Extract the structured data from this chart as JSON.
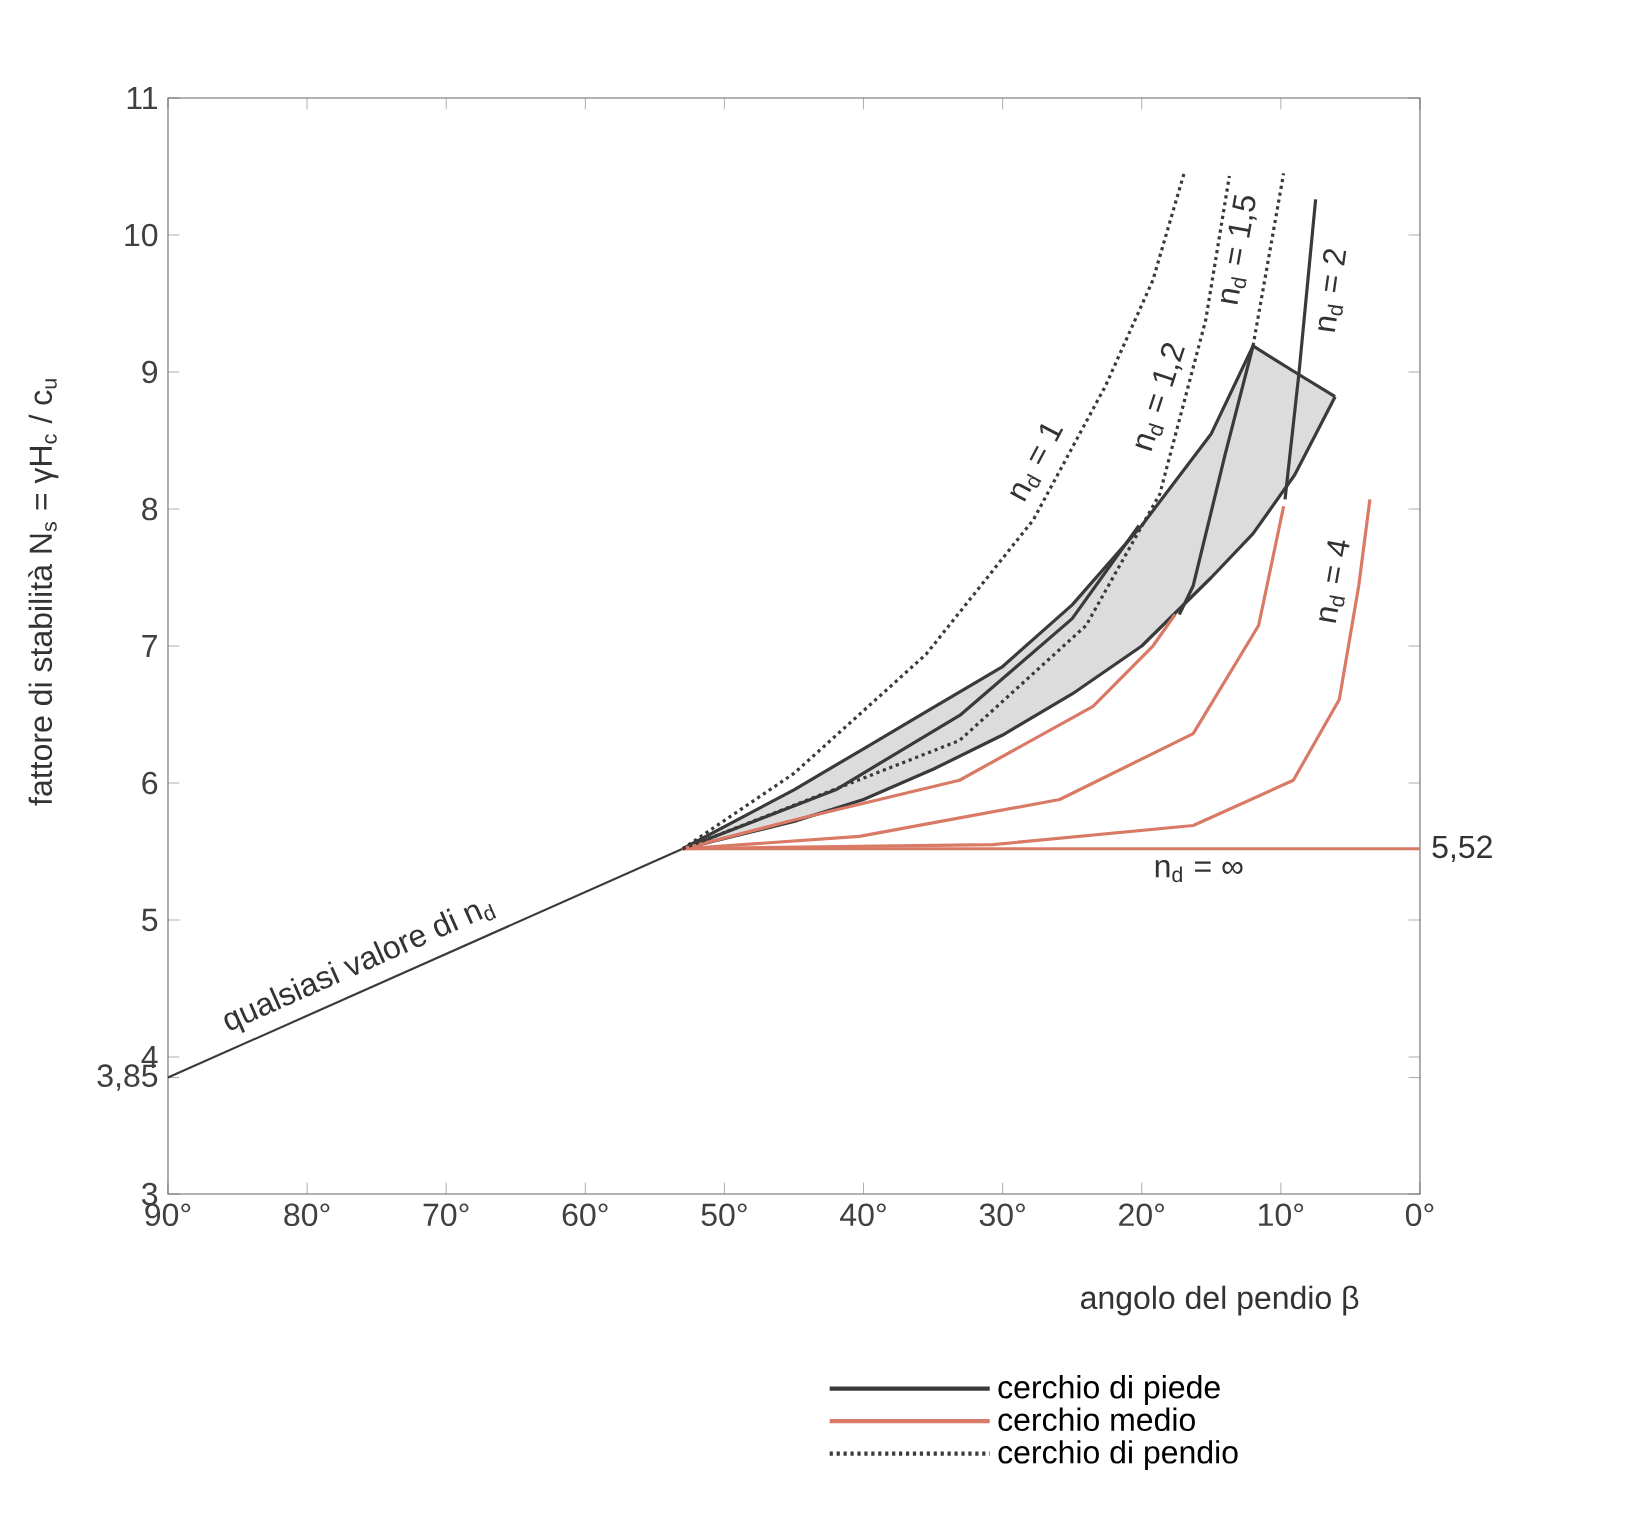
{
  "chart_data": {
    "type": "line",
    "xlabel": "angolo del pendio β",
    "ylabel": "fattore di stabilità  N$_{s}$ = γH$_{c}$ / c$_{u}$",
    "xlim": [
      90,
      0
    ],
    "ylim": [
      3,
      11
    ],
    "xticks": [
      {
        "value": 90,
        "label": "90°"
      },
      {
        "value": 80,
        "label": "80°"
      },
      {
        "value": 70,
        "label": "70°"
      },
      {
        "value": 60,
        "label": "60°"
      },
      {
        "value": 50,
        "label": "50°"
      },
      {
        "value": 40,
        "label": "40°"
      },
      {
        "value": 30,
        "label": "30°"
      },
      {
        "value": 20,
        "label": "20°"
      },
      {
        "value": 10,
        "label": "10°"
      },
      {
        "value": 0,
        "label": "0°"
      }
    ],
    "yticks": [
      3,
      {
        "value": 3.85,
        "label": "3,85"
      },
      4,
      5,
      6,
      7,
      8,
      9,
      10,
      11
    ],
    "legend": "bottom right",
    "grid": false,
    "marker": "none",
    "series": [
      {
        "color": "#3a3a3a",
        "line_style": "solid",
        "x": [
          90,
          53
        ],
        "values": [
          3.85,
          5.52
        ]
      },
      {
        "name": "cerchio di piede",
        "color": "#3a3a3a",
        "line_style": "solid",
        "x": [
          53,
          45,
          40,
          35,
          30,
          25,
          20,
          15,
          12,
          9,
          6.1
        ],
        "values": [
          5.52,
          5.95,
          6.25,
          6.55,
          6.85,
          7.3,
          7.88,
          8.55,
          9.19,
          9.0,
          8.82
        ],
        "upper": [
          5.52,
          5.95,
          6.25,
          6.55,
          6.85,
          7.3,
          7.88,
          8.55,
          9.19,
          9.0,
          8.82
        ],
        "lower": [
          5.52,
          5.72,
          5.88,
          6.1,
          6.35,
          6.65,
          7.0,
          7.5,
          7.82,
          8.25,
          8.82
        ]
      },
      {
        "color": "#3a3a3a",
        "line_style": "solid",
        "x": [
          53,
          45,
          40,
          35,
          30,
          25,
          20,
          15,
          12,
          9,
          6.1
        ],
        "values": [
          5.52,
          5.72,
          5.88,
          6.1,
          6.35,
          6.65,
          7.0,
          7.5,
          7.82,
          8.25,
          8.82
        ]
      },
      {
        "color": "#3a3a3a",
        "line_style": "solid",
        "x": [
          53,
          42,
          33,
          25,
          20.2
        ],
        "values": [
          5.52,
          5.95,
          6.5,
          7.2,
          7.88
        ]
      },
      {
        "color": "#3a3a3a",
        "line_style": "solid",
        "x": [
          17.3,
          16.3,
          14,
          12
        ],
        "values": [
          7.23,
          7.44,
          8.4,
          9.19
        ]
      },
      {
        "color": "#3a3a3a",
        "line_style": "solid",
        "x": [
          9.7,
          8.7,
          7.5
        ],
        "values": [
          8.07,
          8.99,
          10.26
        ]
      },
      {
        "name": "cerchio medio",
        "color": "#d97a66",
        "line_style": "solid",
        "x": [
          53,
          45,
          33.1,
          23.5,
          19.2,
          17.6
        ],
        "values": [
          5.52,
          5.73,
          6.02,
          6.56,
          7.0,
          7.23
        ]
      },
      {
        "color": "#d97a66",
        "line_style": "solid",
        "x": [
          53,
          40.3,
          25.9,
          16.3,
          11.6,
          9.8
        ],
        "values": [
          5.52,
          5.61,
          5.88,
          6.36,
          7.15,
          8.02
        ]
      },
      {
        "color": "#d97a66",
        "line_style": "solid",
        "x": [
          53,
          30.7,
          16.3,
          9.1,
          5.8,
          4.4,
          3.6
        ],
        "values": [
          5.52,
          5.55,
          5.69,
          6.02,
          6.61,
          7.44,
          8.07
        ]
      },
      {
        "color": "#d97a66",
        "line_style": "solid",
        "x": [
          53,
          0
        ],
        "values": [
          5.52,
          5.52
        ]
      },
      {
        "name": "cerchio di pendio",
        "color": "#3a3a3a",
        "line_style": "dotted",
        "x": [
          53,
          45,
          35.5,
          27.8,
          22.6,
          19.2,
          16.9
        ],
        "values": [
          5.52,
          6.07,
          6.94,
          7.92,
          8.9,
          9.67,
          10.47
        ]
      },
      {
        "color": "#3a3a3a",
        "line_style": "dotted",
        "x": [
          53,
          33.1,
          24,
          18.7,
          15.4,
          13.7
        ],
        "values": [
          5.52,
          6.31,
          7.15,
          8.11,
          9.38,
          10.43
        ]
      },
      {
        "color": "#3a3a3a",
        "line_style": "dotted",
        "x": [
          12,
          9.8
        ],
        "values": [
          9.19,
          10.45
        ]
      }
    ],
    "annotations": [
      {
        "text": "qualsiasi valore di n$_{d}$",
        "x": 75.5,
        "y": 4.5
      },
      {
        "text": "n$_{d}$ = 1",
        "x": 26,
        "y": 8.26
      },
      {
        "text": "n$_{d}$ = 1,2",
        "x": 17,
        "y": 8.76
      },
      {
        "text": "n$_{d}$ = 1,5",
        "x": 11.3,
        "y": 9.86
      },
      {
        "text": "n$_{d}$ = 2",
        "x": 8.1,
        "y": 9.62
      },
      {
        "text": "n$_{d}$ = 4",
        "x": 4.4,
        "y": 7.44
      },
      {
        "text": "n$_{d}$ = ∞",
        "x": 15.9,
        "y": 5.52
      },
      {
        "text": "5,52",
        "x": 0,
        "y": 5.52
      }
    ]
  }
}
